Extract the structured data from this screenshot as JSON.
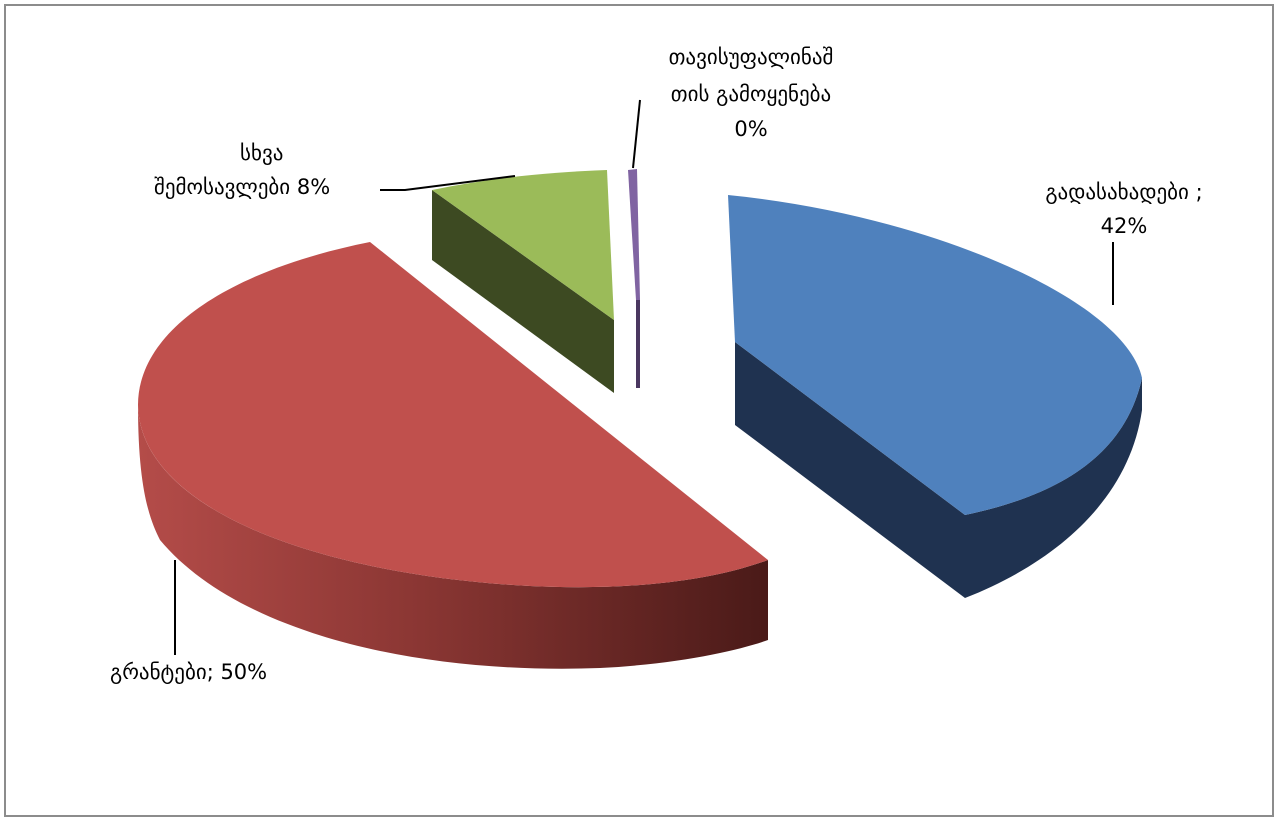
{
  "chart_data": {
    "type": "pie",
    "title": "",
    "slices": [
      {
        "label": "გადასახადები ;",
        "value": 42,
        "value_text": "42%",
        "color": "#4f81bd",
        "side_color": "#1f3250"
      },
      {
        "label": "გრანტები;",
        "value": 50,
        "value_text": "50%",
        "color": "#c0504d",
        "side_color": "#5e1f1d"
      },
      {
        "label": "სხვა შემოსავლები",
        "value": 8,
        "value_text": "8%",
        "color": "#9bbb59",
        "side_color": "#3d4a22"
      },
      {
        "label": "თავისუფალი ნაშთის გამოყენება",
        "value": 0,
        "value_text": "0%",
        "color": "#8064a2",
        "side_color": "#4a3760"
      }
    ],
    "labels_display": {
      "taxes_line1": "გადასახადები ;",
      "taxes_line2": "42%",
      "grants": "გრანტები; 50%",
      "other_line1": "სხვა",
      "other_line2": "შემოსავლები 8%",
      "free_line1": "თავისუფალინაშ",
      "free_line2": "თის გამოყენება",
      "free_line3": "0%"
    },
    "style": "3d-exploded-pie",
    "legend": "none"
  }
}
